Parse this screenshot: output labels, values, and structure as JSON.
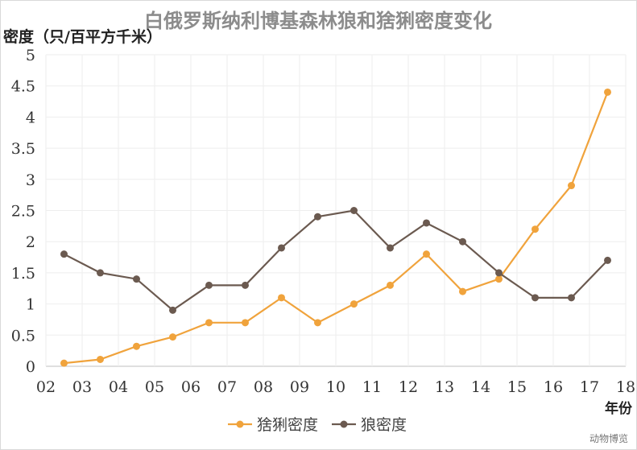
{
  "chart_data": {
    "type": "line",
    "title": "白俄罗斯纳利博基森林狼和猞猁密度变化",
    "ylabel": "密度（只/百平方千米）",
    "xlabel": "年份",
    "ylim": [
      0,
      5
    ],
    "y_ticks": [
      "0",
      "0.5",
      "1",
      "1.5",
      "2",
      "2.5",
      "3",
      "3.5",
      "4",
      "4.5",
      "5"
    ],
    "x_ticks": [
      "02",
      "03",
      "04",
      "05",
      "06",
      "07",
      "08",
      "09",
      "10",
      "11",
      "12",
      "13",
      "14",
      "15",
      "16",
      "17",
      "18"
    ],
    "x_range": [
      2,
      18
    ],
    "grid": true,
    "legend_position": "bottom-center",
    "series": [
      {
        "name": "猞猁密度",
        "color": "#f0a33c",
        "x": [
          2.5,
          3.5,
          4.5,
          5.5,
          6.5,
          7.5,
          8.5,
          9.5,
          10.5,
          11.5,
          12.5,
          13.5,
          14.5,
          15.5,
          16.5,
          17.5
        ],
        "values": [
          0.05,
          0.11,
          0.32,
          0.47,
          0.7,
          0.7,
          1.1,
          0.7,
          1.0,
          1.3,
          1.8,
          1.2,
          1.4,
          2.2,
          2.9,
          4.4
        ]
      },
      {
        "name": "狼密度",
        "color": "#6b5a50",
        "x": [
          2.5,
          3.5,
          4.5,
          5.5,
          6.5,
          7.5,
          8.5,
          9.5,
          10.5,
          11.5,
          12.5,
          13.5,
          14.5,
          15.5,
          16.5,
          17.5
        ],
        "values": [
          1.8,
          1.5,
          1.4,
          0.9,
          1.3,
          1.3,
          1.9,
          2.4,
          2.5,
          1.9,
          2.3,
          2.0,
          1.5,
          1.1,
          1.1,
          1.7
        ]
      }
    ]
  },
  "watermark": "动物博览"
}
